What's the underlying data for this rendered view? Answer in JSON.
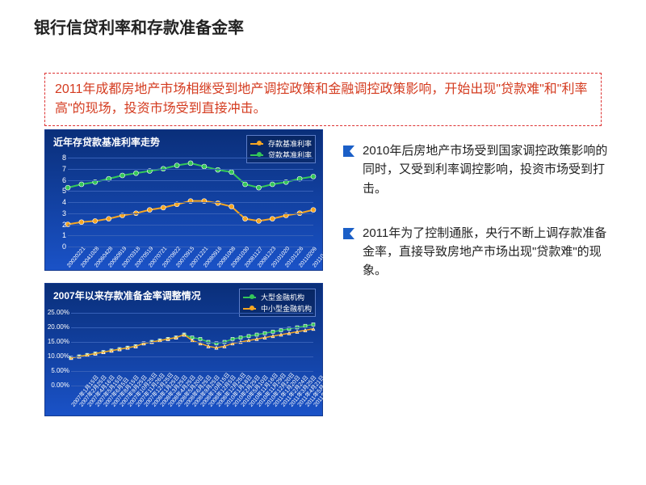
{
  "title": "银行信贷利率和存款准备金率",
  "redbox_text": "2011年成都房地产市场相继受到地产调控政策和金融调控政策影响，开始出现\"贷款难\"和\"利率高\"的现场，投资市场受到直接冲击。",
  "chart1": {
    "type": "line",
    "title": "近年存贷款基准利率走势",
    "background_gradient": [
      "#0a2f7a",
      "#1a52c7"
    ],
    "grid_color": "#3660b8",
    "text_color": "#ffffff",
    "ylim": [
      0,
      8
    ],
    "ytick_step": 1,
    "x_labels": [
      "20020221",
      "20041028",
      "20060428",
      "20060819",
      "20070318",
      "20070519",
      "20070721",
      "20070822",
      "20070915",
      "20071221",
      "20080916",
      "20081008",
      "20081030",
      "20081127",
      "20081223",
      "20101020",
      "20101226",
      "20110209",
      "20110406"
    ],
    "series": [
      {
        "name": "存款基准利率",
        "color": "#f5a623",
        "marker": "circle",
        "values": [
          2.0,
          2.2,
          2.3,
          2.5,
          2.8,
          3.0,
          3.3,
          3.5,
          3.8,
          4.1,
          4.1,
          3.9,
          3.6,
          2.5,
          2.3,
          2.5,
          2.8,
          3.0,
          3.3
        ]
      },
      {
        "name": "贷款基准利率",
        "color": "#34c759",
        "marker": "circle",
        "values": [
          5.3,
          5.6,
          5.8,
          6.1,
          6.4,
          6.6,
          6.8,
          7.0,
          7.3,
          7.5,
          7.2,
          6.9,
          6.7,
          5.6,
          5.3,
          5.6,
          5.8,
          6.1,
          6.3
        ]
      }
    ],
    "title_fontsize": 12,
    "label_fontsize": 9,
    "line_width": 2,
    "marker_size": 6
  },
  "chart2": {
    "type": "line",
    "title": "2007年以来存款准备金率调整情况",
    "background_gradient": [
      "#0a2f7a",
      "#1a52c7"
    ],
    "grid_color": "#3660b8",
    "text_color": "#ffffff",
    "ylim": [
      0,
      25
    ],
    "yticks": [
      0,
      5,
      10,
      15,
      20,
      25
    ],
    "ytick_labels": [
      "0.00%",
      "5.00%",
      "10.00%",
      "15.00%",
      "20.00%",
      "25.00%"
    ],
    "x_labels": [
      "2007年1月15日",
      "2007年2月25日",
      "2007年4月16日",
      "2007年5月15日",
      "2007年6月5日",
      "2007年8月15日",
      "2007年9月25日",
      "2007年10月25日",
      "2007年11月26日",
      "2007年12月25日",
      "2008年1月25日",
      "2008年3月25日",
      "2008年4月25日",
      "2008年5月20日",
      "2008年6月25日",
      "2008年9月25日",
      "2008年10月15日",
      "2008年12月5日",
      "2008年12月25日",
      "2010年1月18日",
      "2010年2月25日",
      "2010年5月10日",
      "2010年11月16日",
      "2010年11月29日",
      "2010年12月20日",
      "2011年1月20日",
      "2011年2月24日",
      "2011年3月25日",
      "2011年4月21日",
      "2011年5月18日",
      "2011年6月20日"
    ],
    "series": [
      {
        "name": "大型金融机构",
        "color": "#34c759",
        "marker": "square",
        "values": [
          9.5,
          10.0,
          10.5,
          11.0,
          11.5,
          12.0,
          12.5,
          13.0,
          13.5,
          14.5,
          15.0,
          15.5,
          16.0,
          16.5,
          17.5,
          16.5,
          16.0,
          15.0,
          14.5,
          15.0,
          16.0,
          16.5,
          17.0,
          17.5,
          18.0,
          18.5,
          19.0,
          19.5,
          20.0,
          20.5,
          21.0
        ]
      },
      {
        "name": "中小型金融机构",
        "color": "#f5a623",
        "marker": "triangle",
        "values": [
          9.5,
          10.0,
          10.5,
          11.0,
          11.5,
          12.0,
          12.5,
          13.0,
          13.5,
          14.5,
          15.0,
          15.5,
          16.0,
          16.5,
          17.5,
          15.5,
          14.5,
          13.5,
          13.0,
          13.5,
          14.5,
          15.0,
          15.5,
          16.0,
          16.5,
          17.0,
          17.5,
          18.0,
          18.5,
          19.0,
          19.5
        ]
      }
    ],
    "title_fontsize": 12,
    "label_fontsize": 8,
    "line_width": 1.5,
    "marker_size": 4
  },
  "bullets": [
    "2010年后房地产市场受到国家调控政策影响的同时，又受到利率调控影响，投资市场受到打击。",
    "2011年为了控制通胀，央行不断上调存款准备金率，直接导致房地产市场出现\"贷款难\"的现象。"
  ],
  "bullet_icon_color": "#1b5fc7"
}
